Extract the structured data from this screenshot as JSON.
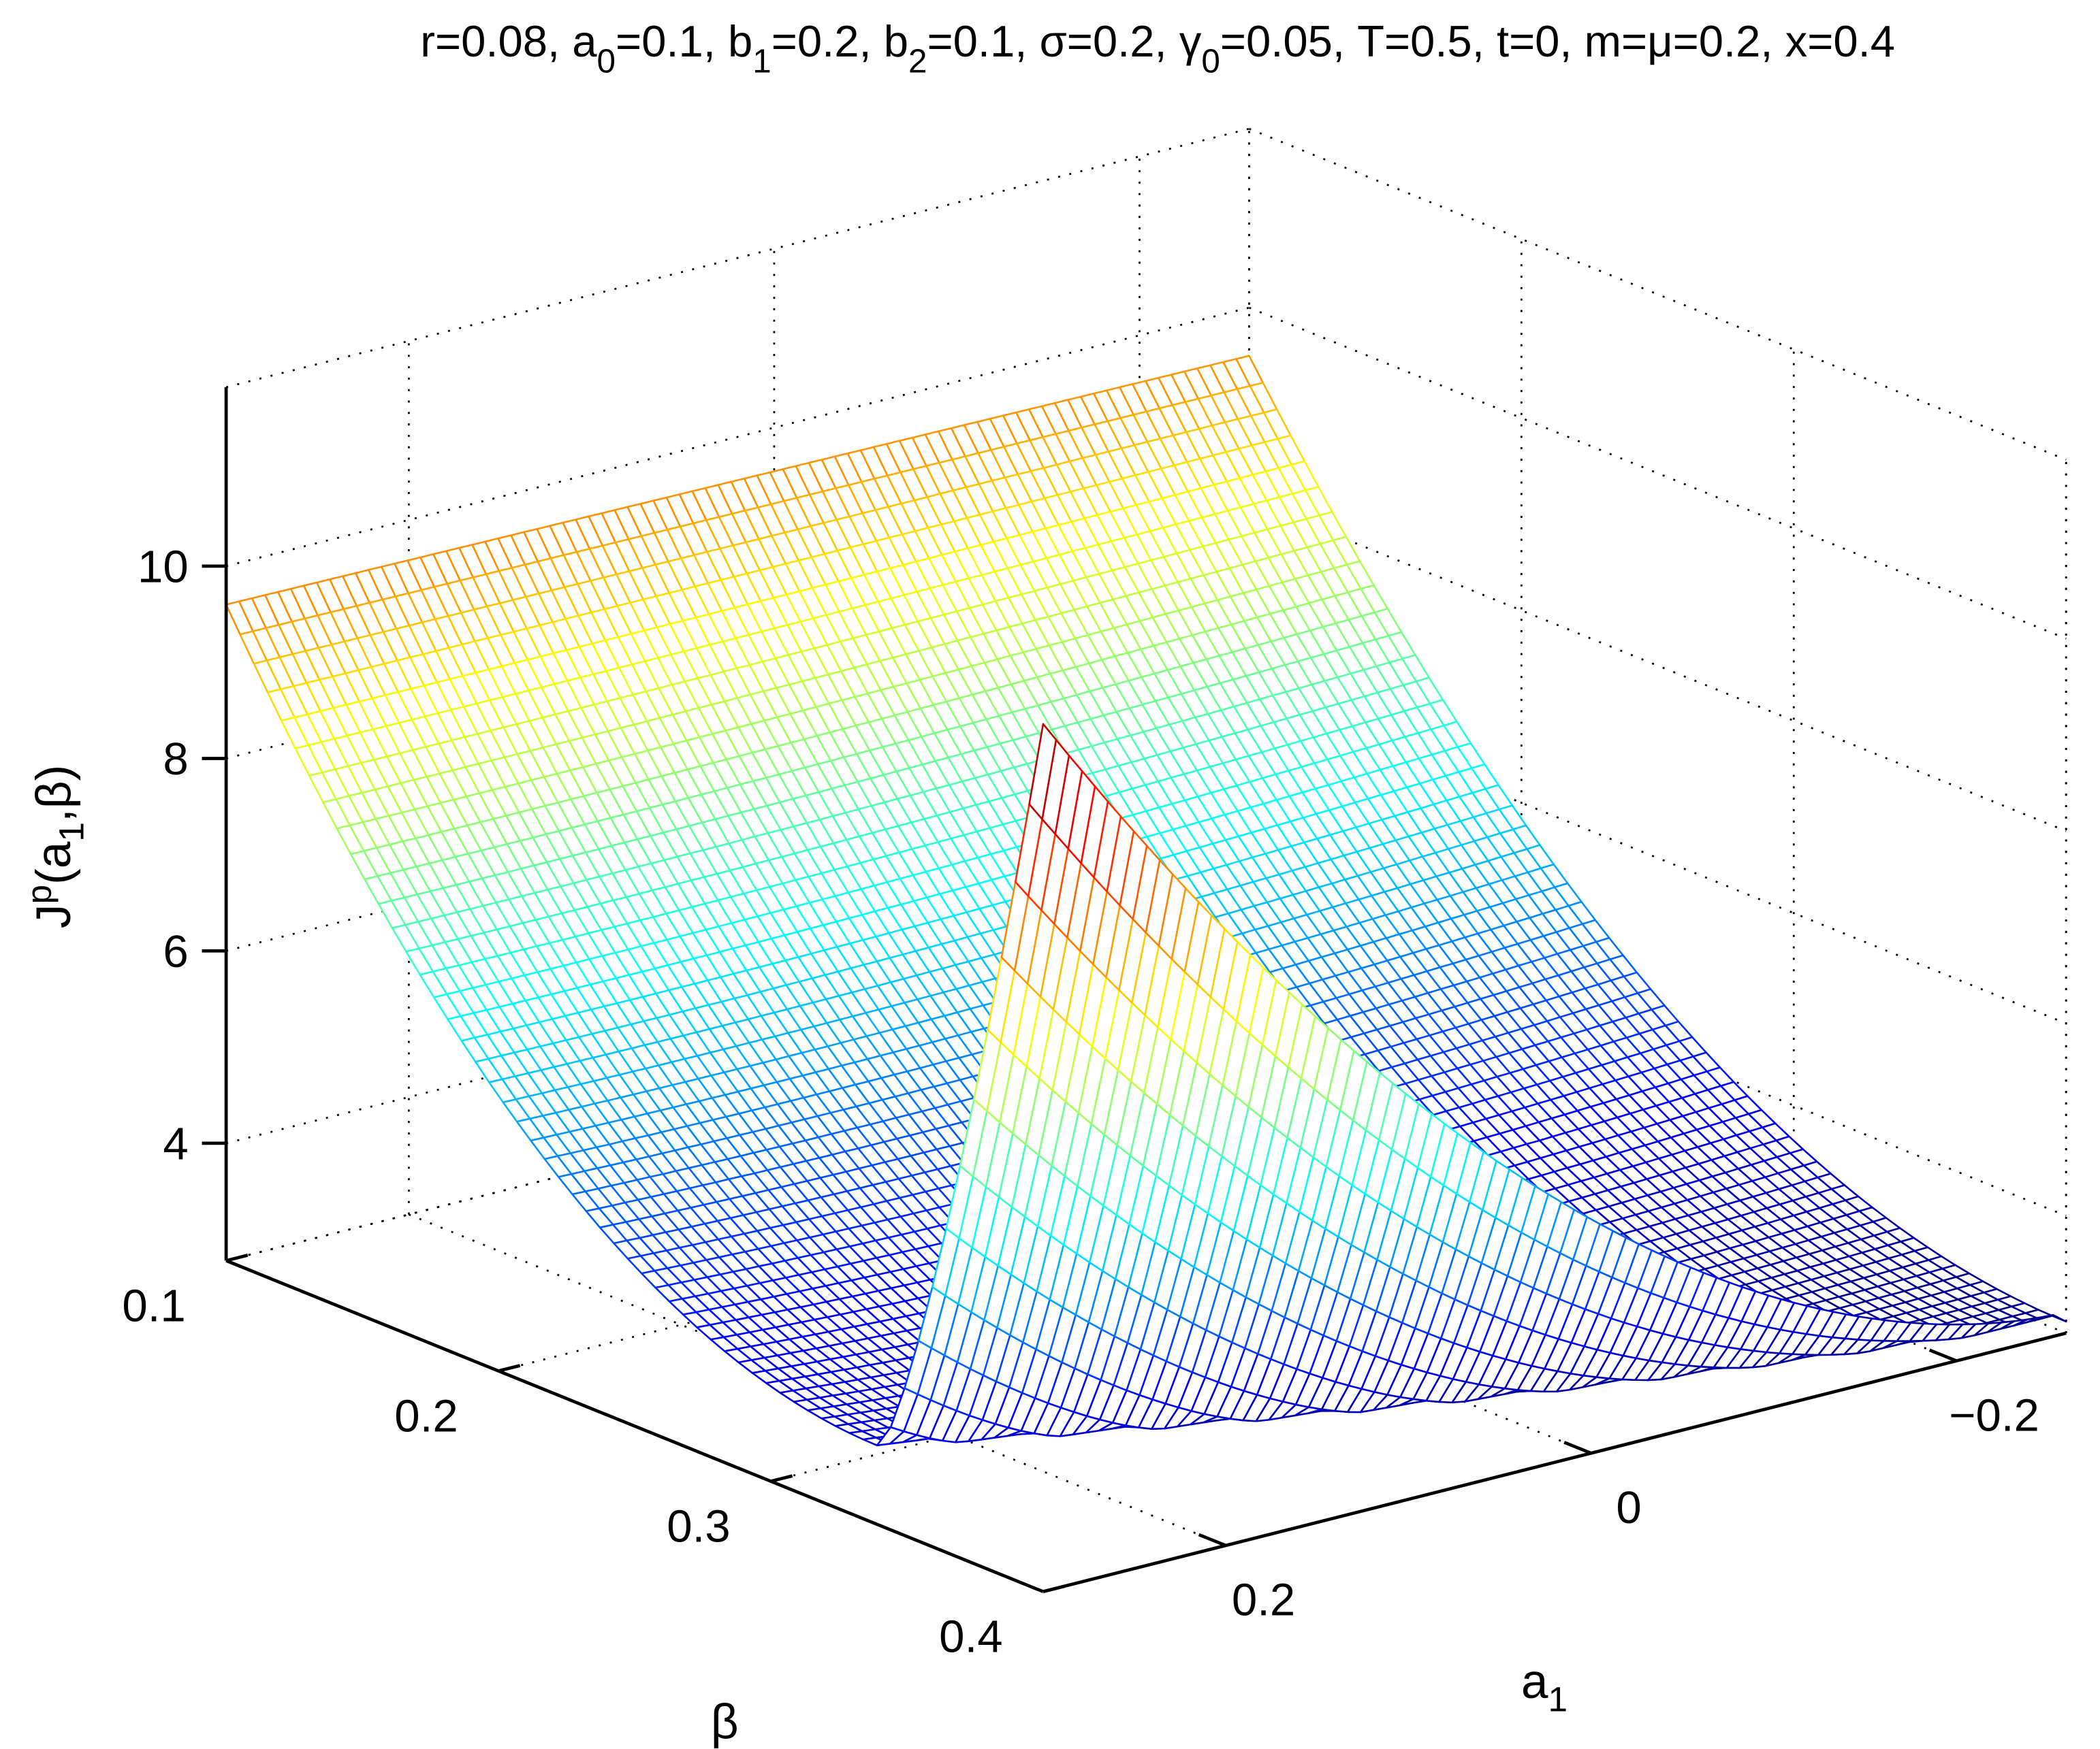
{
  "chart_data": {
    "type": "mesh-surface-3d",
    "title_segments": [
      {
        "t": "r=0.08, a"
      },
      {
        "sub": "0"
      },
      {
        "t": "=0.1, b"
      },
      {
        "sub": "1"
      },
      {
        "t": "=0.2, b"
      },
      {
        "sub": "2"
      },
      {
        "t": "=0.1, σ=0.2, γ"
      },
      {
        "sub": "0"
      },
      {
        "t": "=0.05, T=0.5, t=0, m=μ=0.2, x=0.4"
      }
    ],
    "xlabel": {
      "base": "a",
      "sub": "1"
    },
    "ylabel": "β",
    "zlabel": {
      "base": "J",
      "sup": "p",
      "rest1": "(a",
      "sub": "1",
      "rest2": ",β)"
    },
    "x_axis": {
      "name": "a1",
      "lim": [
        -0.26,
        0.3
      ],
      "ticks": [
        0.2,
        0,
        -0.2
      ],
      "tick_labels": [
        "0.2",
        "0",
        "−0.2"
      ]
    },
    "y_axis": {
      "name": "beta",
      "lim": [
        0.1,
        0.4
      ],
      "ticks": [
        0.1,
        0.2,
        0.3,
        0.4
      ],
      "tick_labels": [
        "0.1",
        "0.2",
        "0.3",
        "0.4"
      ]
    },
    "z_axis": {
      "lim": [
        2.78,
        11.86
      ],
      "ticks": [
        4,
        6,
        8,
        10
      ],
      "tick_labels": [
        "4",
        "6",
        "8",
        "10"
      ]
    },
    "grid": true,
    "colormap": "jet",
    "surface_summary": {
      "z_at_beta_0.1": 9.6,
      "valley_min_z": 2.9,
      "peak": {
        "a1": 0.3,
        "beta": 0.4,
        "z": 11.8
      },
      "z_at_a1_0_beta_0.4": 5.3,
      "z_at_a1_min_beta_0.4": 3.0
    },
    "mesh_resolution": {
      "a1_points": 80,
      "beta_points": 60
    }
  }
}
